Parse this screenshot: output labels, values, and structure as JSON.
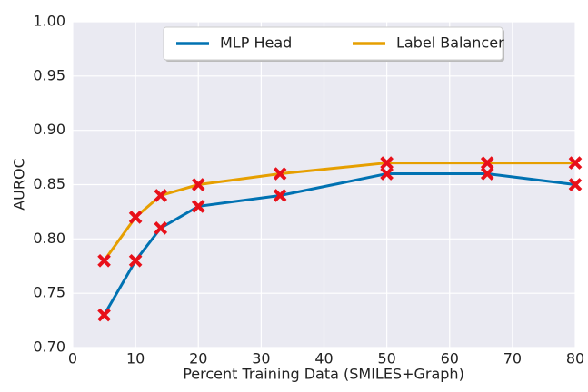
{
  "chart_data": {
    "type": "line",
    "xlabel": "Percent Training Data (SMILES+Graph)",
    "ylabel": "AUROC",
    "x": [
      5,
      10,
      14,
      20,
      33,
      50,
      66,
      80
    ],
    "series": [
      {
        "name": "MLP Head",
        "color": "#0072b2",
        "values": [
          0.73,
          0.78,
          0.81,
          0.83,
          0.84,
          0.86,
          0.86,
          0.85
        ]
      },
      {
        "name": "Label Balancer",
        "color": "#e69f00",
        "values": [
          0.78,
          0.82,
          0.84,
          0.85,
          0.86,
          0.87,
          0.87,
          0.87
        ]
      }
    ],
    "marker_color": "#e8101a",
    "xlim": [
      0,
      80
    ],
    "xticks": [
      0,
      10,
      20,
      30,
      40,
      50,
      60,
      70,
      80
    ],
    "ylim": [
      0.7,
      1.0
    ],
    "yticks": [
      {
        "value": 0.7,
        "label": "0.70"
      },
      {
        "value": 0.75,
        "label": "0.75"
      },
      {
        "value": 0.8,
        "label": "0.80"
      },
      {
        "value": 0.85,
        "label": "0.85"
      },
      {
        "value": 0.9,
        "label": "0.90"
      },
      {
        "value": 0.95,
        "label": "0.95"
      },
      {
        "value": 1.0,
        "label": "1.00"
      }
    ],
    "grid": true,
    "legend": "upper center"
  }
}
